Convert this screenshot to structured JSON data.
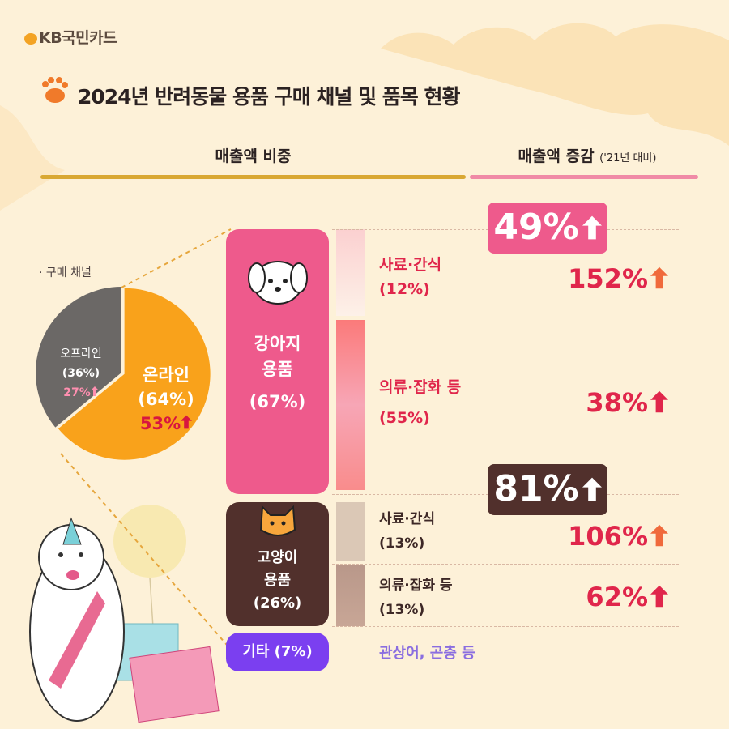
{
  "brand": "KB국민카드",
  "title": "2024년 반려동물 용품 구매 채널 및 품목 현황",
  "columns": {
    "share": "매출액 비중",
    "growth": "매출액 증감",
    "growth_note": "('21년 대비)"
  },
  "channel": {
    "label": "· 구매 채널",
    "slices": [
      {
        "name": "온라인",
        "share": 64,
        "share_label": "(64%)",
        "growth": "53%",
        "color": "#f9a21b"
      },
      {
        "name": "오프라인",
        "share": 36,
        "share_label": "(36%)",
        "growth": "27%",
        "color": "#6b6866"
      }
    ]
  },
  "groups": [
    {
      "name": [
        "강아지",
        "용품"
      ],
      "share": "(67%)",
      "growth": "49%",
      "items": [
        {
          "name": "사료·간식",
          "share": "(12%)",
          "growth": "152%"
        },
        {
          "name": "의류·잡화 등",
          "share": "(55%)",
          "growth": "38%"
        }
      ]
    },
    {
      "name": [
        "고양이",
        "용품"
      ],
      "share": "(26%)",
      "growth": "81%",
      "items": [
        {
          "name": "사료·간식",
          "share": "(13%)",
          "growth": "106%"
        },
        {
          "name": "의류·잡화 등",
          "share": "(13%)",
          "growth": "62%"
        }
      ]
    },
    {
      "name": "기타 (7%)",
      "note": "관상어, 곤충 등"
    }
  ]
}
